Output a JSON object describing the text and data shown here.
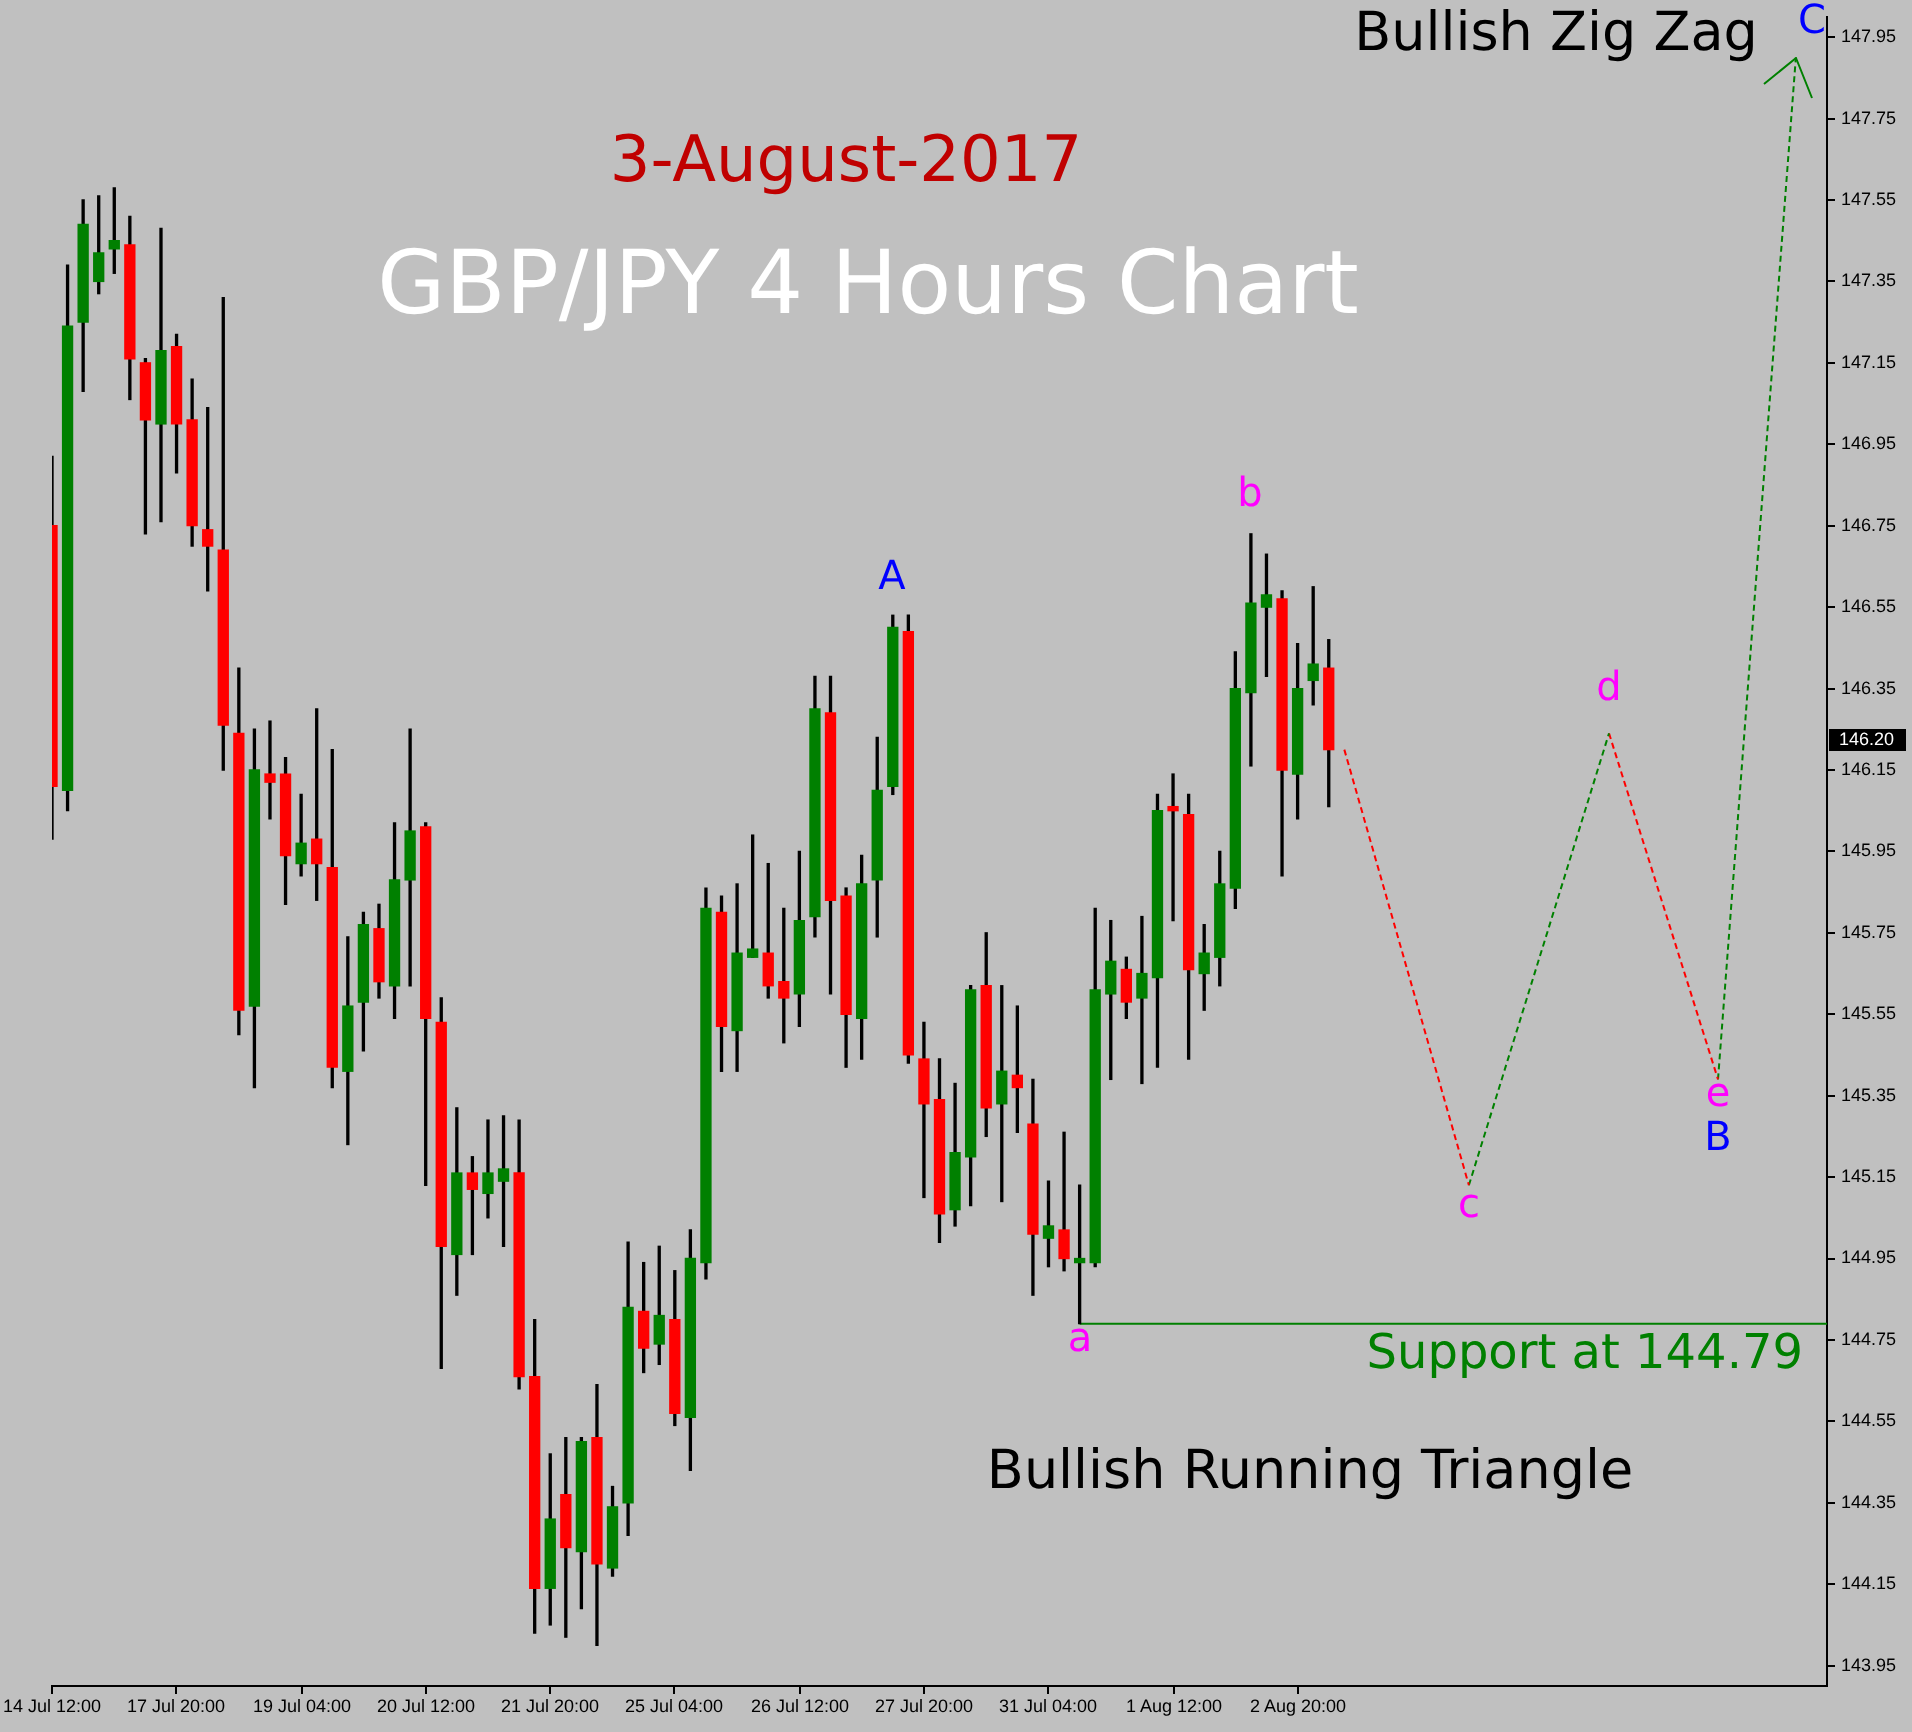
{
  "chart_data": {
    "type": "candlestick",
    "title": "GBP/JPY 4 Hours Chart",
    "subtitle": "3-August-2017",
    "categories": [
      "14 Jul 12:00",
      null,
      null,
      null,
      null,
      null,
      null,
      null,
      "17 Jul 20:00",
      null,
      null,
      null,
      null,
      null,
      null,
      null,
      "19 Jul 04:00",
      null,
      null,
      null,
      null,
      null,
      null,
      null,
      "20 Jul 12:00",
      null,
      null,
      null,
      null,
      null,
      null,
      null,
      "21 Jul 20:00",
      null,
      null,
      null,
      null,
      null,
      null,
      null,
      "25 Jul 04:00",
      null,
      null,
      null,
      null,
      null,
      null,
      null,
      "26 Jul 12:00",
      null,
      null,
      null,
      null,
      null,
      null,
      null,
      "27 Jul 20:00",
      null,
      null,
      null,
      null,
      null,
      null,
      null,
      "31 Jul 04:00",
      null,
      null,
      null,
      null,
      null,
      null,
      null,
      "1 Aug 12:00",
      null,
      null,
      null,
      null,
      null,
      null,
      null,
      "2 Aug 20:00",
      null,
      null,
      null,
      null,
      null,
      null,
      null,
      null,
      null,
      null,
      null,
      null,
      null,
      null,
      null,
      null,
      null,
      null,
      null,
      null,
      null,
      null,
      null,
      null,
      null,
      null,
      null,
      null,
      null,
      null,
      null,
      null,
      null,
      null
    ],
    "ylim": [
      143.9,
      148.0
    ],
    "yticks": [
      143.95,
      144.15,
      144.35,
      144.55,
      144.75,
      144.95,
      145.15,
      145.35,
      145.55,
      145.75,
      145.95,
      146.15,
      146.35,
      146.55,
      146.75,
      146.95,
      147.15,
      147.35,
      147.55,
      147.75,
      147.95
    ],
    "grid": false,
    "legend": false,
    "series": [
      {
        "type": "candlestick",
        "ohlc": [
          [
            146.75,
            146.92,
            145.98,
            146.11
          ],
          [
            146.1,
            147.39,
            146.05,
            147.24
          ],
          [
            147.25,
            147.55,
            147.08,
            147.49
          ],
          [
            147.35,
            147.56,
            147.32,
            147.42
          ],
          [
            147.43,
            147.58,
            147.37,
            147.45
          ],
          [
            147.44,
            147.51,
            147.06,
            147.16
          ],
          [
            147.15,
            147.16,
            146.73,
            147.01
          ],
          [
            147.0,
            147.48,
            146.76,
            147.18
          ],
          [
            147.19,
            147.22,
            146.88,
            147.0
          ],
          [
            147.01,
            147.11,
            146.7,
            146.75
          ],
          [
            146.74,
            147.04,
            146.59,
            146.7
          ],
          [
            146.69,
            147.31,
            146.15,
            146.26
          ],
          [
            146.24,
            146.4,
            145.5,
            145.56
          ],
          [
            145.57,
            146.25,
            145.37,
            146.15
          ],
          [
            146.14,
            146.27,
            146.03,
            146.12
          ],
          [
            146.14,
            146.18,
            145.82,
            145.94
          ],
          [
            145.92,
            146.09,
            145.89,
            145.97
          ],
          [
            145.98,
            146.3,
            145.83,
            145.92
          ],
          [
            145.91,
            146.2,
            145.37,
            145.42
          ],
          [
            145.41,
            145.74,
            145.23,
            145.57
          ],
          [
            145.58,
            145.8,
            145.46,
            145.77
          ],
          [
            145.76,
            145.82,
            145.59,
            145.63
          ],
          [
            145.62,
            146.02,
            145.54,
            145.88
          ],
          [
            145.88,
            146.25,
            145.62,
            146.0
          ],
          [
            146.01,
            146.02,
            145.13,
            145.54
          ],
          [
            145.53,
            145.59,
            144.68,
            144.98
          ],
          [
            144.96,
            145.32,
            144.86,
            145.16
          ],
          [
            145.16,
            145.2,
            144.96,
            145.12
          ],
          [
            145.11,
            145.29,
            145.05,
            145.16
          ],
          [
            145.14,
            145.3,
            144.98,
            145.17
          ],
          [
            145.16,
            145.29,
            144.63,
            144.66
          ],
          [
            144.66,
            144.8,
            144.03,
            144.14
          ],
          [
            144.14,
            144.47,
            144.05,
            144.31
          ],
          [
            144.37,
            144.51,
            144.02,
            144.24
          ],
          [
            144.23,
            144.51,
            144.09,
            144.5
          ],
          [
            144.51,
            144.64,
            144.0,
            144.2
          ],
          [
            144.19,
            144.39,
            144.17,
            144.34
          ],
          [
            144.35,
            144.99,
            144.27,
            144.83
          ],
          [
            144.82,
            144.94,
            144.67,
            144.73
          ],
          [
            144.74,
            144.98,
            144.69,
            144.81
          ],
          [
            144.8,
            144.92,
            144.54,
            144.57
          ],
          [
            144.56,
            145.02,
            144.43,
            144.95
          ],
          [
            144.94,
            145.86,
            144.9,
            145.81
          ],
          [
            145.8,
            145.84,
            145.41,
            145.52
          ],
          [
            145.51,
            145.87,
            145.41,
            145.7
          ],
          [
            145.69,
            145.99,
            145.69,
            145.71
          ],
          [
            145.7,
            145.92,
            145.59,
            145.62
          ],
          [
            145.63,
            145.81,
            145.48,
            145.59
          ],
          [
            145.6,
            145.95,
            145.52,
            145.78
          ],
          [
            145.79,
            146.38,
            145.74,
            146.3
          ],
          [
            146.29,
            146.38,
            145.6,
            145.83
          ],
          [
            145.84,
            145.86,
            145.42,
            145.55
          ],
          [
            145.54,
            145.94,
            145.44,
            145.87
          ],
          [
            145.88,
            146.23,
            145.74,
            146.1
          ],
          [
            146.11,
            146.53,
            146.09,
            146.5
          ],
          [
            146.49,
            146.53,
            145.43,
            145.45
          ],
          [
            145.44,
            145.53,
            145.1,
            145.33
          ],
          [
            145.34,
            145.44,
            144.99,
            145.06
          ],
          [
            145.07,
            145.38,
            145.03,
            145.21
          ],
          [
            145.2,
            145.62,
            145.08,
            145.61
          ],
          [
            145.62,
            145.75,
            145.25,
            145.32
          ],
          [
            145.33,
            145.62,
            145.09,
            145.41
          ],
          [
            145.4,
            145.57,
            145.26,
            145.37
          ],
          [
            145.28,
            145.39,
            144.86,
            145.01
          ],
          [
            145.0,
            145.14,
            144.93,
            145.03
          ],
          [
            145.02,
            145.26,
            144.92,
            144.95
          ],
          [
            144.94,
            145.13,
            144.79,
            144.95
          ],
          [
            144.94,
            145.81,
            144.93,
            145.61
          ],
          [
            145.6,
            145.78,
            145.39,
            145.68
          ],
          [
            145.66,
            145.69,
            145.54,
            145.58
          ],
          [
            145.59,
            145.79,
            145.38,
            145.65
          ],
          [
            145.64,
            146.09,
            145.42,
            146.05
          ],
          [
            146.06,
            146.14,
            145.78,
            146.05
          ],
          [
            146.04,
            146.09,
            145.44,
            145.66
          ],
          [
            145.65,
            145.77,
            145.56,
            145.7
          ],
          [
            145.69,
            145.95,
            145.62,
            145.87
          ],
          [
            145.86,
            146.44,
            145.81,
            146.35
          ],
          [
            146.34,
            146.73,
            146.16,
            146.56
          ],
          [
            146.55,
            146.68,
            146.38,
            146.58
          ],
          [
            146.57,
            146.59,
            145.89,
            146.15
          ],
          [
            146.14,
            146.46,
            146.03,
            146.35
          ],
          [
            146.37,
            146.6,
            146.31,
            146.41
          ],
          [
            146.4,
            146.47,
            146.06,
            146.2
          ],
          null,
          null,
          null,
          null,
          null,
          null,
          null,
          null,
          null,
          null,
          null,
          null,
          null,
          null,
          null,
          null,
          null,
          null,
          null,
          null,
          null,
          null,
          null,
          null,
          null,
          null,
          null,
          null,
          null,
          null,
          null,
          null
        ],
        "colors": [
          "#ff0000",
          "#008000",
          "#008000",
          "#008000",
          "#008000",
          "#ff0000",
          "#ff0000",
          "#008000",
          "#ff0000",
          "#ff0000",
          "#ff0000",
          "#ff0000",
          "#ff0000",
          "#008000",
          "#ff0000",
          "#ff0000",
          "#008000",
          "#ff0000",
          "#ff0000",
          "#008000",
          "#008000",
          "#ff0000",
          "#008000",
          "#008000",
          "#ff0000",
          "#ff0000",
          "#008000",
          "#ff0000",
          "#008000",
          "#008000",
          "#ff0000",
          "#ff0000",
          "#008000",
          "#ff0000",
          "#008000",
          "#ff0000",
          "#008000",
          "#008000",
          "#ff0000",
          "#008000",
          "#ff0000",
          "#008000",
          "#008000",
          "#ff0000",
          "#008000",
          "#008000",
          "#ff0000",
          "#ff0000",
          "#008000",
          "#008000",
          "#ff0000",
          "#ff0000",
          "#008000",
          "#008000",
          "#008000",
          "#ff0000",
          "#ff0000",
          "#ff0000",
          "#008000",
          "#008000",
          "#ff0000",
          "#008000",
          "#ff0000",
          "#ff0000",
          "#008000",
          "#ff0000",
          "#008000",
          "#008000",
          "#008000",
          "#ff0000",
          "#008000",
          "#008000",
          "#ff0000",
          "#ff0000",
          "#008000",
          "#008000",
          "#008000",
          "#008000",
          "#008000",
          "#ff0000",
          "#008000",
          "#008000",
          "#ff0000",
          null,
          null,
          null,
          null,
          null,
          null,
          null,
          null,
          null,
          null,
          null,
          null,
          null,
          null,
          null,
          null,
          null,
          null,
          null,
          null,
          null,
          null,
          null,
          null,
          null,
          null,
          null,
          null,
          null,
          null,
          null,
          null
        ]
      },
      {
        "type": "line",
        "name": "Support at 144.79",
        "color": "#008000",
        "values": [
          null,
          null,
          null,
          null,
          null,
          null,
          null,
          null,
          null,
          null,
          null,
          null,
          null,
          null,
          null,
          null,
          null,
          null,
          null,
          null,
          null,
          null,
          null,
          null,
          null,
          null,
          null,
          null,
          null,
          null,
          null,
          null,
          null,
          null,
          null,
          null,
          null,
          null,
          null,
          null,
          null,
          null,
          null,
          null,
          null,
          null,
          null,
          null,
          null,
          null,
          null,
          null,
          null,
          null,
          null,
          null,
          null,
          null,
          null,
          null,
          null,
          null,
          null,
          null,
          null,
          null,
          144.79,
          144.79,
          144.79,
          144.79,
          144.79,
          144.79,
          144.79,
          144.79,
          144.79,
          144.79,
          144.79,
          144.79,
          144.79,
          144.79,
          144.79,
          144.79,
          144.79,
          144.79,
          144.79,
          144.79,
          144.79,
          144.79,
          144.79,
          144.79,
          144.79,
          144.79,
          144.79,
          144.79,
          144.79,
          144.79,
          144.79,
          144.79,
          144.79,
          144.79,
          144.79,
          144.79,
          144.79,
          144.79,
          144.79,
          144.79,
          144.79,
          144.79,
          144.79,
          144.79,
          144.79,
          144.79,
          144.79,
          144.79,
          144.79
        ]
      },
      {
        "type": "line",
        "color": "#ff0000",
        "line_style": "dotted",
        "values": [
          null,
          null,
          null,
          null,
          null,
          null,
          null,
          null,
          null,
          null,
          null,
          null,
          null,
          null,
          null,
          null,
          null,
          null,
          null,
          null,
          null,
          null,
          null,
          null,
          null,
          null,
          null,
          null,
          null,
          null,
          null,
          null,
          null,
          null,
          null,
          null,
          null,
          null,
          null,
          null,
          null,
          null,
          null,
          null,
          null,
          null,
          null,
          null,
          null,
          null,
          null,
          null,
          null,
          null,
          null,
          null,
          null,
          null,
          null,
          null,
          null,
          null,
          null,
          null,
          null,
          null,
          null,
          null,
          null,
          null,
          null,
          null,
          null,
          null,
          null,
          null,
          null,
          null,
          null,
          null,
          null,
          null,
          null,
          146.2,
          null,
          null,
          null,
          null,
          null,
          null,
          null,
          145.13,
          null,
          null,
          null,
          null,
          null,
          null,
          null,
          null,
          null,
          null,
          null,
          null,
          null,
          null,
          null,
          null,
          null,
          null,
          null,
          null,
          null,
          null,
          null
        ]
      },
      {
        "type": "line",
        "color": "#008000",
        "line_style": "dotted",
        "values": [
          null,
          null,
          null,
          null,
          null,
          null,
          null,
          null,
          null,
          null,
          null,
          null,
          null,
          null,
          null,
          null,
          null,
          null,
          null,
          null,
          null,
          null,
          null,
          null,
          null,
          null,
          null,
          null,
          null,
          null,
          null,
          null,
          null,
          null,
          null,
          null,
          null,
          null,
          null,
          null,
          null,
          null,
          null,
          null,
          null,
          null,
          null,
          null,
          null,
          null,
          null,
          null,
          null,
          null,
          null,
          null,
          null,
          null,
          null,
          null,
          null,
          null,
          null,
          null,
          null,
          null,
          null,
          null,
          null,
          null,
          null,
          null,
          null,
          null,
          null,
          null,
          null,
          null,
          null,
          null,
          null,
          null,
          null,
          null,
          null,
          null,
          null,
          null,
          null,
          null,
          null,
          145.13,
          null,
          null,
          null,
          null,
          null,
          null,
          null,
          null,
          146.24,
          null,
          null,
          null,
          null,
          null,
          null,
          null,
          null,
          null,
          null,
          null,
          null,
          null,
          null
        ]
      },
      {
        "type": "line",
        "color": "#ff0000",
        "line_style": "dotted",
        "values": [
          null,
          null,
          null,
          null,
          null,
          null,
          null,
          null,
          null,
          null,
          null,
          null,
          null,
          null,
          null,
          null,
          null,
          null,
          null,
          null,
          null,
          null,
          null,
          null,
          null,
          null,
          null,
          null,
          null,
          null,
          null,
          null,
          null,
          null,
          null,
          null,
          null,
          null,
          null,
          null,
          null,
          null,
          null,
          null,
          null,
          null,
          null,
          null,
          null,
          null,
          null,
          null,
          null,
          null,
          null,
          null,
          null,
          null,
          null,
          null,
          null,
          null,
          null,
          null,
          null,
          null,
          null,
          null,
          null,
          null,
          null,
          null,
          null,
          null,
          null,
          null,
          null,
          null,
          null,
          null,
          null,
          null,
          null,
          null,
          null,
          null,
          null,
          null,
          null,
          null,
          null,
          null,
          null,
          null,
          null,
          null,
          null,
          null,
          null,
          null,
          146.24,
          null,
          null,
          null,
          null,
          null,
          null,
          145.39,
          null,
          null,
          null,
          null,
          null,
          null,
          null
        ]
      },
      {
        "type": "line",
        "color": "#008000",
        "line_style": "dotted",
        "values": [
          null,
          null,
          null,
          null,
          null,
          null,
          null,
          null,
          null,
          null,
          null,
          null,
          null,
          null,
          null,
          null,
          null,
          null,
          null,
          null,
          null,
          null,
          null,
          null,
          null,
          null,
          null,
          null,
          null,
          null,
          null,
          null,
          null,
          null,
          null,
          null,
          null,
          null,
          null,
          null,
          null,
          null,
          null,
          null,
          null,
          null,
          null,
          null,
          null,
          null,
          null,
          null,
          null,
          null,
          null,
          null,
          null,
          null,
          null,
          null,
          null,
          null,
          null,
          null,
          null,
          null,
          null,
          null,
          null,
          null,
          null,
          null,
          null,
          null,
          null,
          null,
          null,
          null,
          null,
          null,
          null,
          null,
          null,
          null,
          null,
          null,
          null,
          null,
          null,
          null,
          null,
          null,
          null,
          null,
          null,
          null,
          null,
          null,
          null,
          null,
          null,
          null,
          null,
          null,
          null,
          null,
          null,
          145.39,
          null,
          null,
          null,
          null,
          147.9,
          null,
          null
        ]
      }
    ],
    "annotations": [
      "Bullish Zig Zag",
      "C",
      "b",
      "A",
      "d",
      "e",
      "B",
      "c",
      "a",
      "Bullish Running Triangle",
      "146.20"
    ]
  }
}
